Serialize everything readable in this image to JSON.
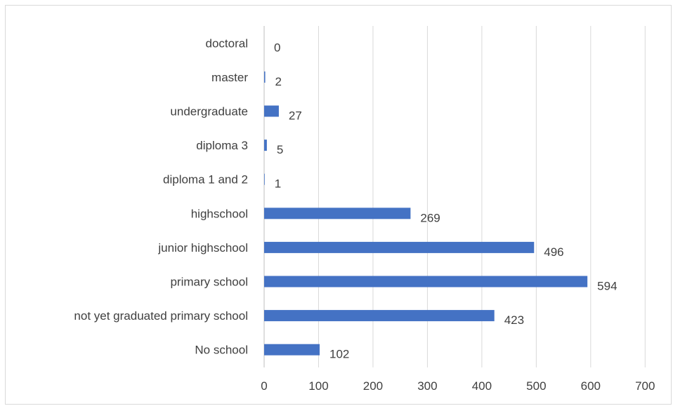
{
  "chart_data": {
    "type": "bar",
    "orientation": "horizontal",
    "categories": [
      "doctoral",
      "master",
      "undergraduate",
      "diploma 3",
      "diploma 1 and 2",
      "highschool",
      "junior highschool",
      "primary school",
      "not yet graduated primary school",
      "No school"
    ],
    "values": [
      0,
      2,
      27,
      5,
      1,
      269,
      496,
      594,
      423,
      102
    ],
    "xlim": [
      0,
      700
    ],
    "x_ticks": [
      0,
      100,
      200,
      300,
      400,
      500,
      600,
      700
    ],
    "grid": "vertical",
    "data_labels": true,
    "bar_color": "#4472C4",
    "grid_color": "#d9d9d9"
  }
}
